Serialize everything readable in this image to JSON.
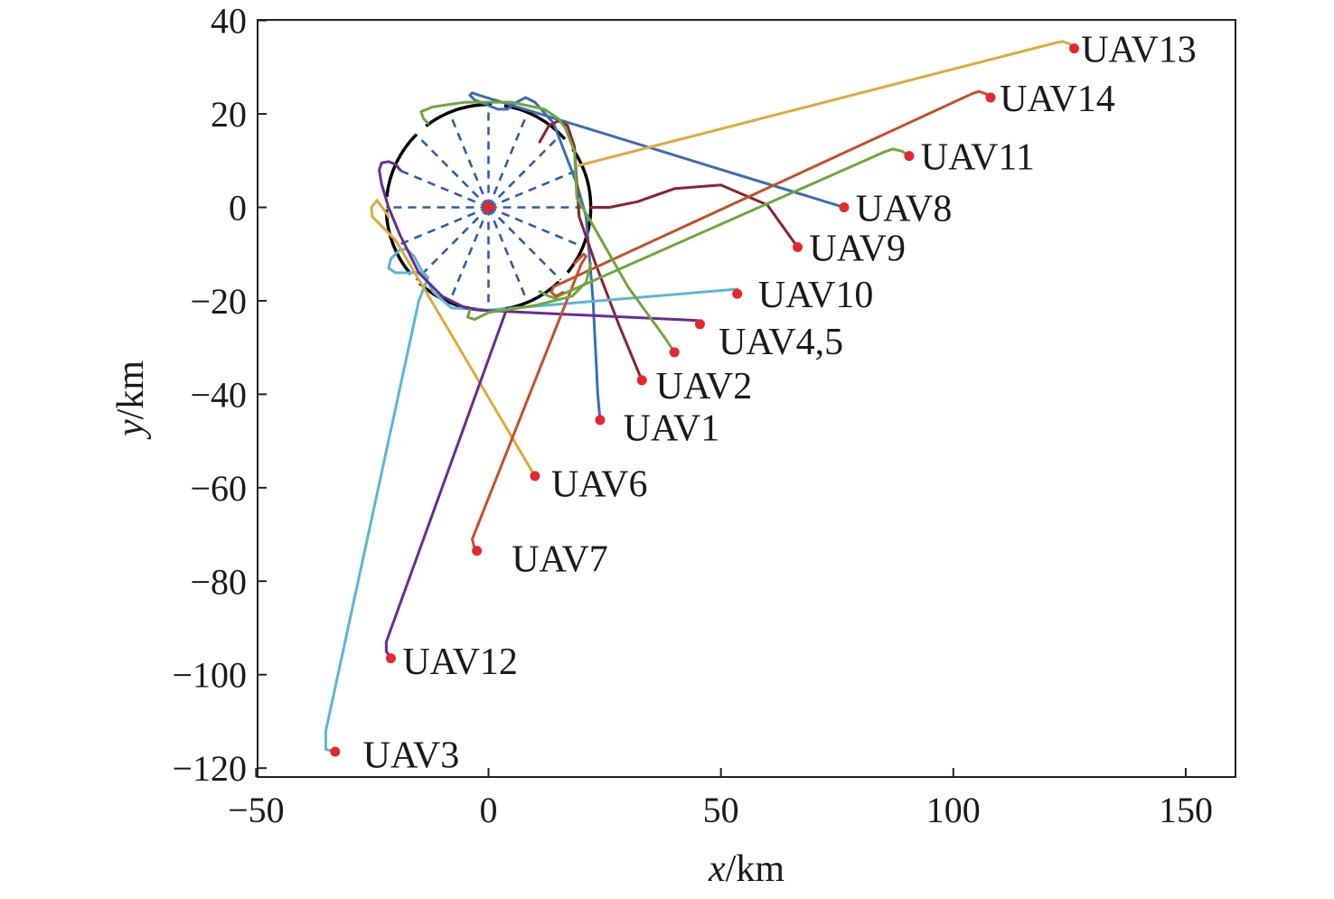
{
  "chart_data": {
    "type": "line",
    "title": "",
    "xlabel_var": "x",
    "xlabel_unit": "/km",
    "ylabel_var": "y",
    "ylabel_unit": "/km",
    "xlim": [
      -50,
      160
    ],
    "ylim": [
      -122,
      40
    ],
    "xticks": [
      -50,
      0,
      50,
      100,
      150
    ],
    "yticks": [
      40,
      20,
      0,
      -20,
      -40,
      -60,
      -80,
      -100,
      -120
    ],
    "xtick_labels": [
      "−50",
      "0",
      "50",
      "100",
      "150"
    ],
    "ytick_labels": [
      "40",
      "20",
      "0",
      "−20",
      "−40",
      "−60",
      "−80",
      "−100",
      "−120"
    ],
    "grid": false,
    "target": {
      "x": 0,
      "y": 0,
      "color": "#e8272d"
    },
    "circle": {
      "center": [
        0,
        0
      ],
      "radius": 22,
      "color": "#000000",
      "spoke_color": "#2f5fa8",
      "spokes": 16
    },
    "series": [
      {
        "name": "UAV1",
        "color": "#3c6db3",
        "start": [
          24,
          -45.5
        ],
        "points": [
          [
            24,
            -45.5
          ],
          [
            23.5,
            -40
          ],
          [
            22.5,
            -20
          ],
          [
            21,
            -2
          ],
          [
            19,
            5
          ],
          [
            14,
            18
          ],
          [
            10,
            22.5
          ],
          [
            8,
            23.5
          ],
          [
            6,
            22.5
          ],
          [
            4,
            21
          ],
          [
            2,
            21
          ],
          [
            -3,
            23
          ],
          [
            -4,
            24
          ],
          [
            -3.5,
            24.5
          ],
          [
            -2,
            24
          ],
          [
            76.5,
            0
          ]
        ]
      },
      {
        "name": "UAV2",
        "color": "#8c2233",
        "start": [
          33,
          -37
        ],
        "points": [
          [
            33,
            -37
          ],
          [
            28,
            -25
          ],
          [
            23,
            -12
          ],
          [
            19.5,
            -2
          ],
          [
            19,
            5
          ],
          [
            18.5,
            13
          ],
          [
            17,
            17.5
          ],
          [
            15,
            18.5
          ],
          [
            13,
            17.5
          ],
          [
            11,
            14
          ]
        ]
      },
      {
        "name": "UAV3",
        "color": "#5bb6d9",
        "start": [
          -33,
          -116.5
        ],
        "points": [
          [
            -33,
            -116.5
          ],
          [
            -35,
            -116
          ],
          [
            -35,
            -112
          ],
          [
            -15,
            -20
          ],
          [
            -13,
            -15
          ],
          [
            -14,
            -14
          ],
          [
            -20,
            -14
          ],
          [
            -21.5,
            -13
          ],
          [
            -21,
            -11
          ],
          [
            -19,
            -9
          ],
          [
            -17.5,
            -9
          ],
          [
            -16,
            -10.5
          ],
          [
            -12,
            -18
          ],
          [
            -8,
            -21.5
          ],
          [
            0,
            -22
          ],
          [
            53.5,
            -17.5
          ]
        ]
      },
      {
        "name": "UAV4,5",
        "color": "#6b2c8f",
        "start": [
          45.5,
          -25
        ],
        "points": [
          [
            45.5,
            -25
          ],
          [
            45,
            -24.2
          ],
          [
            4,
            -22.3
          ],
          [
            -2,
            -22
          ],
          [
            -5,
            -21.5
          ],
          [
            -10,
            -19
          ],
          [
            -15,
            -14
          ],
          [
            -19,
            -6
          ],
          [
            -21.5,
            0
          ],
          [
            -23,
            5
          ],
          [
            -23.5,
            8
          ],
          [
            -23,
            9.5
          ],
          [
            -21.5,
            9.8
          ],
          [
            -20,
            9.2
          ],
          [
            -19,
            8
          ]
        ]
      },
      {
        "name": "UAV6",
        "color": "#deab3b",
        "start": [
          10,
          -57.5
        ],
        "points": [
          [
            10,
            -57.5
          ],
          [
            8.5,
            -55
          ],
          [
            -20,
            -7
          ],
          [
            -25,
            -2
          ],
          [
            -25.2,
            0
          ],
          [
            -24,
            1.5
          ],
          [
            -22.5,
            -0.5
          ],
          [
            -21.5,
            -2
          ]
        ]
      },
      {
        "name": "UAV7",
        "color": "#c4512b",
        "start": [
          -2.5,
          -73.5
        ],
        "points": [
          [
            -2.5,
            -73.5
          ],
          [
            -3,
            -73
          ],
          [
            -3.5,
            -71
          ],
          [
            20,
            -12
          ],
          [
            21,
            -10.5
          ],
          [
            20.5,
            -10
          ],
          [
            18.5,
            -12
          ]
        ]
      },
      {
        "name": "UAV8",
        "color": "#3c6db3",
        "start": [
          76.5,
          0
        ],
        "points": []
      },
      {
        "name": "UAV9",
        "color": "#8c2233",
        "start": [
          66.5,
          -8.5
        ],
        "points": [
          [
            66.5,
            -8.5
          ],
          [
            60,
            0.5
          ],
          [
            50,
            4.8
          ],
          [
            40,
            4
          ],
          [
            32,
            1.2
          ],
          [
            26,
            0
          ],
          [
            22,
            0
          ]
        ]
      },
      {
        "name": "UAV10",
        "color": "#5bb6d9",
        "start": [
          53.5,
          -18.5
        ],
        "points": []
      },
      {
        "name": "UAV11",
        "color": "#6ea83b",
        "start": [
          90.5,
          11
        ],
        "points": [
          [
            90.5,
            11
          ],
          [
            89,
            12
          ],
          [
            87,
            12.5
          ],
          [
            85,
            11.8
          ],
          [
            15,
            -19
          ],
          [
            14.5,
            -19.5
          ],
          [
            13,
            -19
          ],
          [
            11,
            -18
          ]
        ]
      },
      {
        "name": "UAV12",
        "color": "#6b2c8f",
        "start": [
          -21,
          -96.5
        ],
        "points": [
          [
            -21,
            -96.5
          ],
          [
            -22,
            -95
          ],
          [
            -22,
            -93
          ],
          [
            4,
            -21.5
          ]
        ]
      },
      {
        "name": "UAV13",
        "color": "#deab3b",
        "start": [
          126,
          34
        ],
        "points": [
          [
            126,
            34
          ],
          [
            125,
            35
          ],
          [
            123.5,
            35.5
          ],
          [
            122,
            35.2
          ],
          [
            19.5,
            9
          ]
        ]
      },
      {
        "name": "UAV14",
        "color": "#c4512b",
        "start": [
          108,
          23.5
        ],
        "points": [
          [
            108,
            23.5
          ],
          [
            107,
            24.3
          ],
          [
            105.5,
            24.8
          ],
          [
            104,
            24.3
          ],
          [
            14,
            -17
          ],
          [
            13.5,
            -18.2
          ],
          [
            14.5,
            -19
          ],
          [
            16,
            -18.2
          ]
        ]
      },
      {
        "name": "",
        "color": "#6ea83b",
        "start": null,
        "points": [
          [
            40,
            -31
          ],
          [
            38,
            -28
          ],
          [
            30,
            -17
          ],
          [
            22,
            -3
          ],
          [
            19,
            2
          ],
          [
            18.5,
            12
          ],
          [
            16.5,
            17
          ],
          [
            15,
            19
          ],
          [
            12,
            21
          ],
          [
            5,
            22.5
          ],
          [
            -5,
            22.5
          ],
          [
            -12,
            21.5
          ],
          [
            -14.5,
            20.5
          ],
          [
            -14,
            19
          ],
          [
            -13,
            18
          ]
        ]
      },
      {
        "name": "",
        "color": "#8c2233",
        "start": null,
        "points": [
          [
            40,
            -31
          ],
          [
            40,
            -31
          ]
        ]
      },
      {
        "name": "",
        "color": "#6ea83b",
        "start": null,
        "points": [
          [
            22,
            -12
          ],
          [
            21,
            -16
          ],
          [
            18,
            -19
          ],
          [
            10,
            -21
          ],
          [
            0,
            -22.5
          ],
          [
            -3,
            -24
          ],
          [
            -4.5,
            -23.5
          ],
          [
            -4,
            -22
          ]
        ]
      }
    ],
    "labels": [
      {
        "text": "UAV13",
        "at": [
          127.5,
          34
        ]
      },
      {
        "text": "UAV14",
        "at": [
          110,
          23.5
        ]
      },
      {
        "text": "UAV11",
        "at": [
          93,
          11
        ]
      },
      {
        "text": "UAV8",
        "at": [
          79,
          0
        ]
      },
      {
        "text": "UAV9",
        "at": [
          69,
          -8.5
        ]
      },
      {
        "text": "UAV10",
        "at": [
          58,
          -18.5
        ]
      },
      {
        "text": "UAV4,5",
        "at": [
          49.5,
          -28.5
        ]
      },
      {
        "text": "UAV2",
        "at": [
          36,
          -38
        ]
      },
      {
        "text": "UAV1",
        "at": [
          29,
          -47
        ]
      },
      {
        "text": "UAV6",
        "at": [
          13.5,
          -59
        ]
      },
      {
        "text": "UAV7",
        "at": [
          5,
          -75
        ]
      },
      {
        "text": "UAV12",
        "at": [
          -18.5,
          -97
        ]
      },
      {
        "text": "UAV3",
        "at": [
          -27,
          -117
        ]
      }
    ],
    "extra_points": [
      [
        40,
        -31
      ]
    ]
  }
}
